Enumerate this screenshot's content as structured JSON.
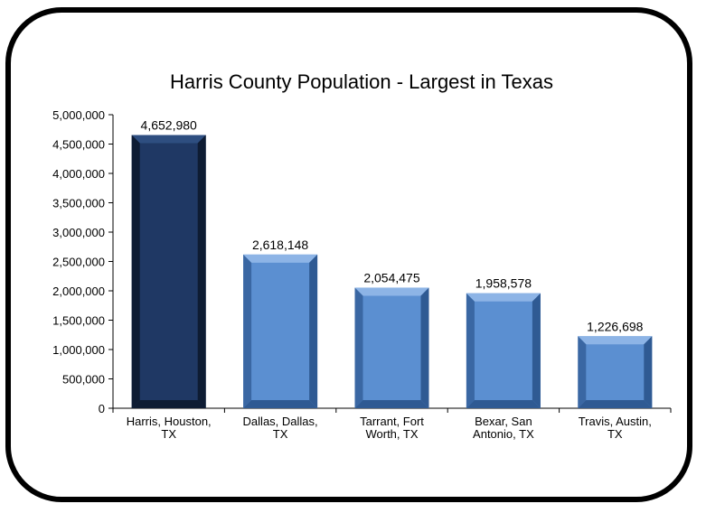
{
  "chart_data": {
    "type": "bar",
    "title": "Harris County Population - Largest in Texas",
    "xlabel": "",
    "ylabel": "",
    "ylim": [
      0,
      5000000
    ],
    "y_ticks": [
      "0",
      "500,000",
      "1,000,000",
      "1,500,000",
      "2,000,000",
      "2,500,000",
      "3,000,000",
      "3,500,000",
      "4,000,000",
      "4,500,000",
      "5,000,000"
    ],
    "categories": [
      [
        "Harris, Houston,",
        "TX"
      ],
      [
        "Dallas, Dallas,",
        "TX"
      ],
      [
        "Tarrant, Fort",
        "Worth, TX"
      ],
      [
        "Bexar, San",
        "Antonio, TX"
      ],
      [
        "Travis, Austin,",
        "TX"
      ]
    ],
    "values": [
      4652980,
      2618148,
      2054475,
      1958578,
      1226698
    ],
    "data_labels": [
      "4,652,980",
      "2,618,148",
      "2,054,475",
      "1,958,578",
      "1,226,698"
    ],
    "highlight_index": 0,
    "grid": false,
    "legend": "none",
    "colors": {
      "highlight_face": "#1f3864",
      "highlight_dark": "#0e1c33",
      "highlight_light": "#2e4e80",
      "bar_face": "#5b8fd1",
      "bar_dark": "#2f5a93",
      "bar_light": "#8db4e6"
    }
  }
}
